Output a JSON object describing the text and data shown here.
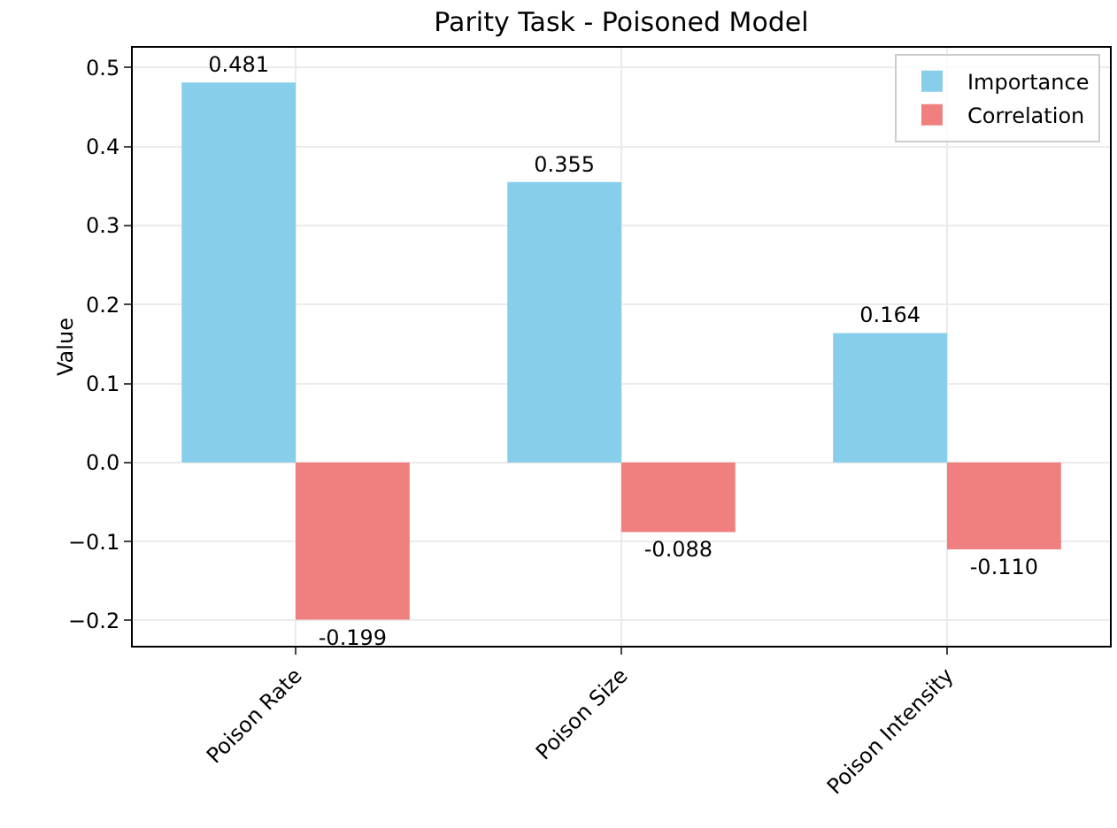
{
  "chart_data": {
    "type": "bar",
    "title": "Parity Task - Poisoned Model",
    "ylabel": "Value",
    "categories": [
      "Poison Rate",
      "Poison Size",
      "Poison Intensity"
    ],
    "series": [
      {
        "name": "Importance",
        "color": "#87ceeb",
        "values": [
          0.481,
          0.355,
          0.164
        ],
        "value_labels": [
          "0.481",
          "0.355",
          "0.164"
        ]
      },
      {
        "name": "Correlation",
        "color": "#f08080",
        "values": [
          -0.199,
          -0.088,
          -0.11
        ],
        "value_labels": [
          "-0.199",
          "-0.088",
          "-0.110"
        ]
      }
    ],
    "ylim": [
      -0.232,
      0.525
    ],
    "yticks": [
      {
        "value": -0.2,
        "label": "−0.2"
      },
      {
        "value": -0.1,
        "label": "−0.1"
      },
      {
        "value": 0,
        "label": "0.0"
      },
      {
        "value": 0.1,
        "label": "0.1"
      },
      {
        "value": 0.2,
        "label": "0.2"
      },
      {
        "value": 0.3,
        "label": "0.3"
      },
      {
        "value": 0.4,
        "label": "0.4"
      },
      {
        "value": 0.5,
        "label": "0.5"
      }
    ],
    "grid": true,
    "legend": "top right"
  }
}
